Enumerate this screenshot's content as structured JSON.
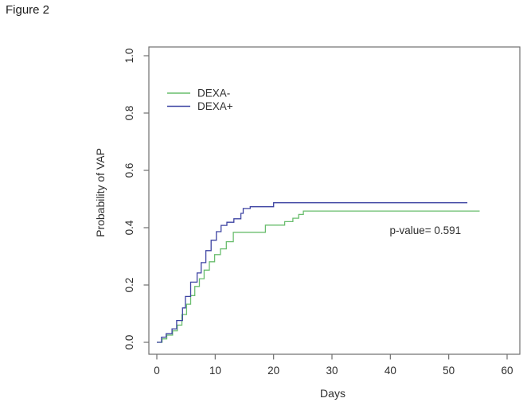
{
  "figure_label": "Figure 2",
  "chart_data": {
    "type": "line",
    "variant": "cumulative-incidence-step-curve",
    "title": "",
    "xlabel": "Days",
    "ylabel": "Probability of VAP",
    "xlim": [
      0,
      62
    ],
    "ylim": [
      0,
      1.04
    ],
    "x_ticks": [
      0,
      10,
      20,
      30,
      40,
      50,
      60
    ],
    "y_ticks": [
      0,
      0.2,
      0.4,
      0.6,
      0.8,
      1
    ],
    "grid": false,
    "legend_position": "upper-left-inside",
    "annotation": {
      "text": "p-value= 0.591",
      "x": 46,
      "y": 0.378
    },
    "series": [
      {
        "id": "dexa-minus",
        "name": "DEXA-",
        "color": "#69bd6d",
        "end_x": 55.3,
        "steps": [
          [
            0,
            0
          ],
          [
            0.9,
            0.012
          ],
          [
            1.7,
            0.025
          ],
          [
            2.7,
            0.04
          ],
          [
            3.5,
            0.06
          ],
          [
            4.3,
            0.097
          ],
          [
            5.1,
            0.133
          ],
          [
            5.8,
            0.163
          ],
          [
            6.5,
            0.195
          ],
          [
            7.3,
            0.222
          ],
          [
            8.1,
            0.252
          ],
          [
            9.0,
            0.281
          ],
          [
            9.9,
            0.306
          ],
          [
            10.9,
            0.326
          ],
          [
            11.9,
            0.351
          ],
          [
            13.1,
            0.384
          ],
          [
            18.6,
            0.409
          ],
          [
            21.9,
            0.421
          ],
          [
            23.3,
            0.433
          ],
          [
            24.3,
            0.446
          ],
          [
            25.1,
            0.458
          ]
        ]
      },
      {
        "id": "dexa-plus",
        "name": "DEXA+",
        "color": "#3d43a2",
        "end_x": 53.2,
        "steps": [
          [
            0,
            0
          ],
          [
            0.8,
            0.018
          ],
          [
            1.6,
            0.03
          ],
          [
            2.6,
            0.047
          ],
          [
            3.4,
            0.076
          ],
          [
            4.4,
            0.12
          ],
          [
            4.9,
            0.16
          ],
          [
            5.8,
            0.21
          ],
          [
            6.9,
            0.242
          ],
          [
            7.6,
            0.278
          ],
          [
            8.4,
            0.32
          ],
          [
            9.3,
            0.356
          ],
          [
            10.2,
            0.386
          ],
          [
            11.0,
            0.408
          ],
          [
            12.0,
            0.419
          ],
          [
            13.2,
            0.431
          ],
          [
            14.4,
            0.45
          ],
          [
            14.8,
            0.467
          ],
          [
            16.0,
            0.473
          ],
          [
            20.0,
            0.487
          ]
        ]
      }
    ]
  }
}
